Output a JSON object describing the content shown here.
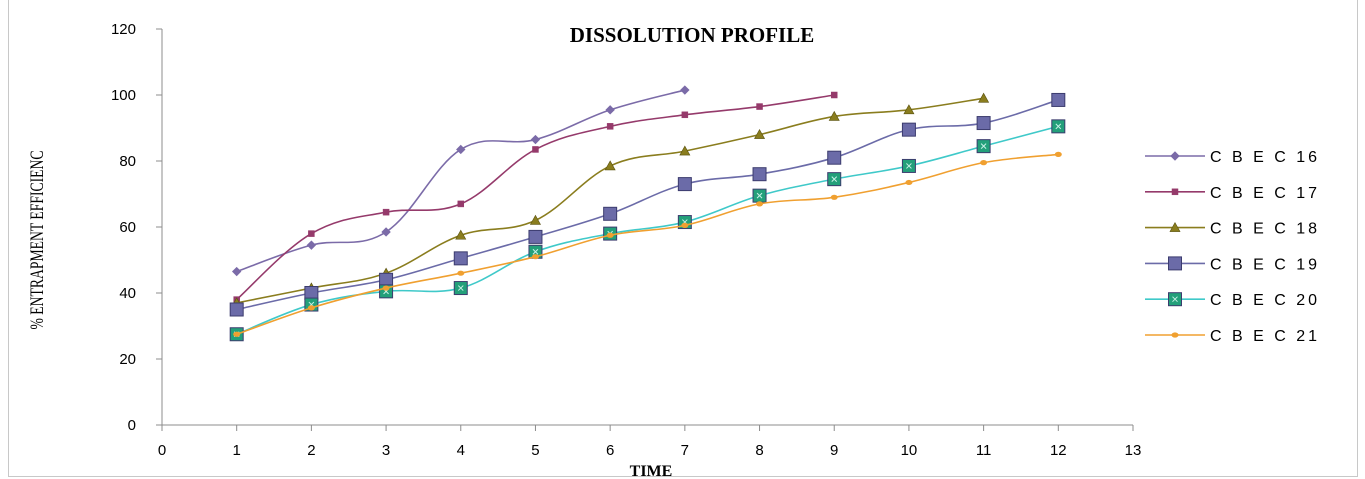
{
  "chart_data": {
    "type": "line",
    "title": "DISSOLUTION PROFILE",
    "xlabel": "TIME",
    "ylabel": "% ENTRAPMENT EFFICIENC",
    "xlim": [
      0,
      13
    ],
    "ylim": [
      0,
      120
    ],
    "x_ticks": [
      0,
      1,
      2,
      3,
      4,
      5,
      6,
      7,
      8,
      9,
      10,
      11,
      12,
      13
    ],
    "y_ticks": [
      0,
      20,
      40,
      60,
      80,
      100,
      120
    ],
    "grid": false,
    "legend_position": "right",
    "series": [
      {
        "name": "C B E C  16",
        "color": "#7b6ba8",
        "marker": "diamond",
        "marker_size": "small",
        "x": [
          1,
          2,
          3,
          4,
          5,
          6,
          7
        ],
        "y": [
          46.5,
          54.5,
          58.5,
          83.5,
          86.5,
          95.5,
          101.5
        ]
      },
      {
        "name": "C B E C  17",
        "color": "#953a6b",
        "marker": "square",
        "marker_size": "small",
        "x": [
          1,
          2,
          3,
          4,
          5,
          6,
          7,
          8,
          9
        ],
        "y": [
          38,
          58,
          64.5,
          67,
          83.5,
          90.5,
          94,
          96.5,
          100
        ]
      },
      {
        "name": "C B E C  18",
        "color": "#8a7d1e",
        "marker": "triangle",
        "marker_size": "small",
        "x": [
          1,
          2,
          3,
          4,
          5,
          6,
          7,
          8,
          9,
          10,
          11
        ],
        "y": [
          37,
          41.5,
          46,
          57.5,
          62,
          78.5,
          83,
          88,
          93.5,
          95.5,
          99
        ]
      },
      {
        "name": "C B E C  19",
        "color": "#6b6ba8",
        "marker": "square",
        "marker_size": "large",
        "x": [
          1,
          2,
          3,
          4,
          5,
          6,
          7,
          8,
          9,
          10,
          11,
          12
        ],
        "y": [
          35,
          40,
          44,
          50.5,
          57,
          64,
          73,
          76,
          81,
          89.5,
          91.5,
          98.5
        ]
      },
      {
        "name": "C B E C  20",
        "color": "#3fc9c9",
        "marker": "square",
        "marker_size": "large",
        "marker_fill": "#23a07a",
        "x": [
          1,
          2,
          3,
          4,
          5,
          6,
          7,
          8,
          9,
          10,
          11,
          12
        ],
        "y": [
          27.5,
          36.5,
          40.5,
          41.5,
          52.5,
          58,
          61.5,
          69.5,
          74.5,
          78.5,
          84.5,
          90.5
        ]
      },
      {
        "name": "C B E C  21",
        "color": "#f0a030",
        "marker": "circle",
        "marker_size": "small",
        "x": [
          1,
          2,
          3,
          4,
          5,
          6,
          7,
          8,
          9,
          10,
          11,
          12
        ],
        "y": [
          27.5,
          35.5,
          41.5,
          46,
          51,
          57.5,
          60.5,
          67,
          69,
          73.5,
          79.5,
          82
        ]
      }
    ]
  }
}
